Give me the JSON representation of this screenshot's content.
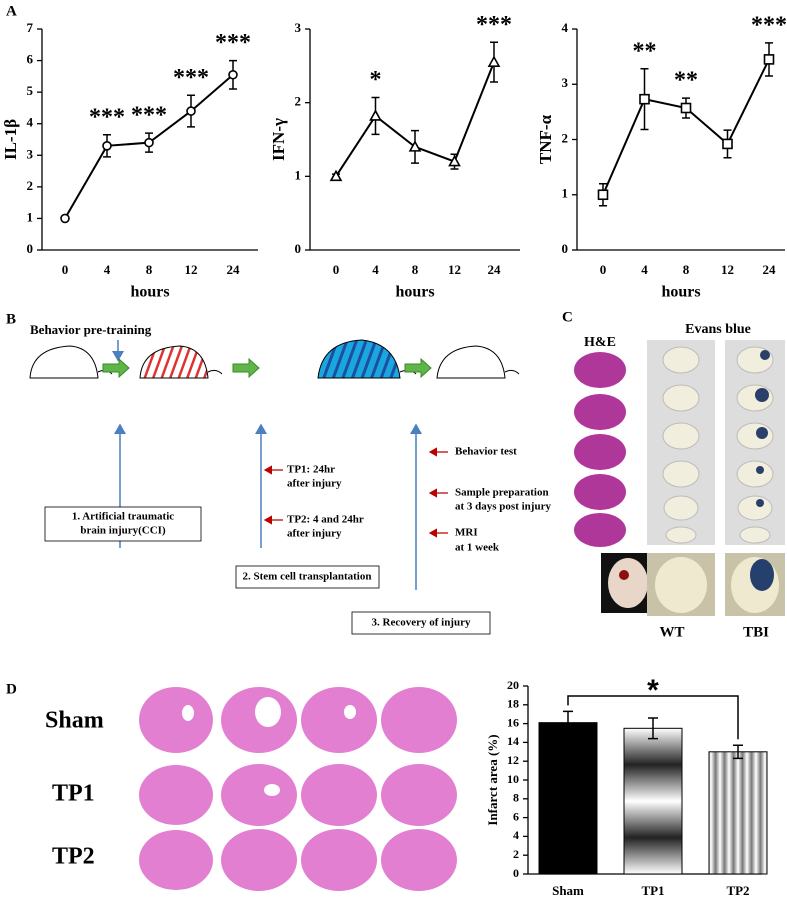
{
  "panel_labels": [
    "A",
    "B",
    "C",
    "D"
  ],
  "chart_data": [
    {
      "type": "line",
      "ylabel": "IL-1β",
      "xlabel": "hours",
      "categories": [
        "0",
        "4",
        "8",
        "12",
        "24"
      ],
      "marker": "circle",
      "color": "#000000",
      "values": [
        1.0,
        3.3,
        3.4,
        4.4,
        5.55
      ],
      "errors": [
        0.05,
        0.35,
        0.3,
        0.5,
        0.45
      ],
      "significance": [
        null,
        "***",
        "***",
        "***",
        "***"
      ],
      "ylim": [
        0,
        7
      ],
      "yticks": [
        0,
        1,
        2,
        3,
        4,
        5,
        6,
        7
      ]
    },
    {
      "type": "line",
      "ylabel": "IFN-γ",
      "xlabel": "hours",
      "categories": [
        "0",
        "4",
        "8",
        "12",
        "24"
      ],
      "marker": "triangle",
      "color": "#000000",
      "values": [
        1.0,
        1.82,
        1.4,
        1.2,
        2.55
      ],
      "errors": [
        0.03,
        0.25,
        0.22,
        0.1,
        0.27
      ],
      "significance": [
        null,
        "*",
        null,
        null,
        "***"
      ],
      "ylim": [
        0,
        3
      ],
      "yticks": [
        0,
        1,
        2,
        3
      ]
    },
    {
      "type": "line",
      "ylabel": "TNF-α",
      "xlabel": "hours",
      "categories": [
        "0",
        "4",
        "8",
        "12",
        "24"
      ],
      "marker": "square",
      "color": "#000000",
      "values": [
        1.0,
        2.73,
        2.57,
        1.92,
        3.45
      ],
      "errors": [
        0.2,
        0.55,
        0.18,
        0.25,
        0.3
      ],
      "significance": [
        null,
        "**",
        "**",
        null,
        "***"
      ],
      "ylim": [
        0,
        4
      ],
      "yticks": [
        0,
        1,
        2,
        3,
        4
      ]
    },
    {
      "type": "bar",
      "ylabel": "Infarct area (%)",
      "categories": [
        "Sham",
        "TP1",
        "TP2"
      ],
      "values": [
        16.1,
        15.5,
        13.0
      ],
      "errors": [
        1.2,
        1.1,
        0.7
      ],
      "fills": [
        "solid",
        "gradient",
        "stripes"
      ],
      "bracket": {
        "between": [
          "Sham",
          "TP2"
        ],
        "label": "*"
      },
      "ylim": [
        0,
        20
      ],
      "yticks": [
        0,
        2,
        4,
        6,
        8,
        10,
        12,
        14,
        16,
        18,
        20
      ]
    }
  ],
  "diagram": {
    "pretraining": "Behavior pre-training",
    "steps": [
      [
        "1. Artificial traumatic",
        "brain injury(CCI)"
      ],
      [
        "2. Stem cell transplantation"
      ],
      [
        "3. Recovery  of injury"
      ]
    ],
    "timepoints": [
      [
        "TP1: 24hr",
        "after injury"
      ],
      [
        "TP2: 4 and 24hr",
        "after injury"
      ]
    ],
    "outcomes": [
      [
        "Behavior test"
      ],
      [
        "Sample preparation",
        "at 3 days post injury"
      ],
      [
        "MRI",
        "at 1 week"
      ]
    ]
  },
  "staining": {
    "he_label": "H&E",
    "evans_label": "Evans blue",
    "columns": [
      "WT",
      "TBI"
    ]
  },
  "histology": {
    "rows": [
      "Sham",
      "TP1",
      "TP2"
    ]
  }
}
